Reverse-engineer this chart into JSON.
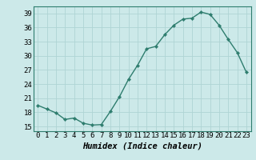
{
  "x": [
    0,
    1,
    2,
    3,
    4,
    5,
    6,
    7,
    8,
    9,
    10,
    11,
    12,
    13,
    14,
    15,
    16,
    17,
    18,
    19,
    20,
    21,
    22,
    23
  ],
  "y": [
    19.5,
    18.7,
    17.9,
    16.5,
    16.8,
    15.7,
    15.3,
    15.4,
    18.2,
    21.3,
    25.0,
    28.0,
    31.5,
    32.0,
    34.5,
    36.5,
    37.8,
    38.0,
    39.3,
    38.8,
    36.5,
    33.5,
    30.7,
    26.5
  ],
  "line_color": "#2e7d6e",
  "marker": "D",
  "marker_size": 2.2,
  "bg_color": "#cce9e9",
  "grid_color": "#afd4d4",
  "xlabel": "Humidex (Indice chaleur)",
  "xlim": [
    -0.5,
    23.5
  ],
  "ylim": [
    14.0,
    40.5
  ],
  "yticks": [
    15,
    18,
    21,
    24,
    27,
    30,
    33,
    36,
    39
  ],
  "xticks": [
    0,
    1,
    2,
    3,
    4,
    5,
    6,
    7,
    8,
    9,
    10,
    11,
    12,
    13,
    14,
    15,
    16,
    17,
    18,
    19,
    20,
    21,
    22,
    23
  ],
  "tick_fontsize": 6.5,
  "xlabel_fontsize": 7.5,
  "line_width": 1.0,
  "spine_color": "#2e7d6e"
}
